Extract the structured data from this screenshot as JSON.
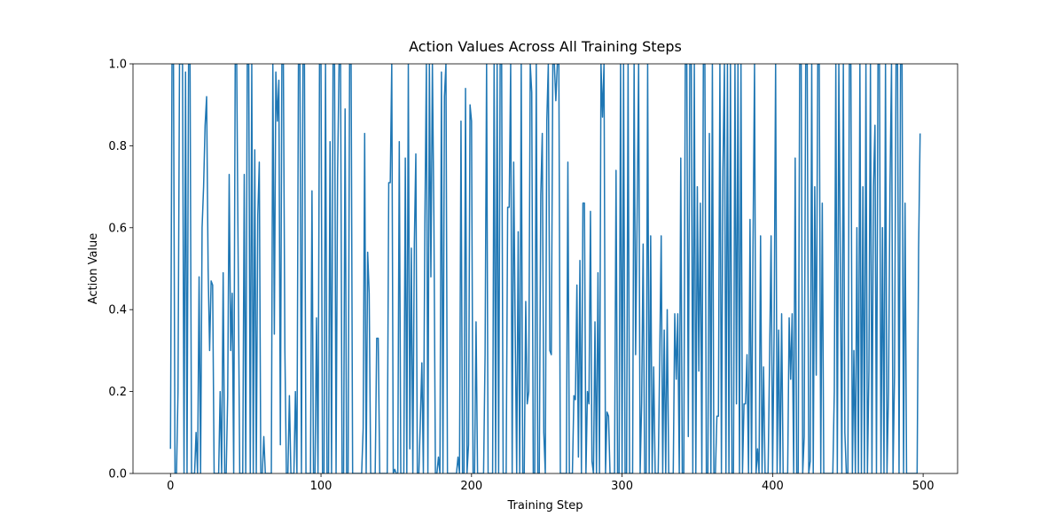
{
  "chart_data": {
    "type": "line",
    "title": "Action Values Across All Training Steps",
    "xlabel": "Training Step",
    "ylabel": "Action Value",
    "color": "#1f77b4",
    "xlim": [
      -24.9,
      522.9
    ],
    "ylim": [
      0,
      1
    ],
    "xticks": [
      0,
      100,
      200,
      300,
      400,
      500
    ],
    "yticks": [
      {
        "value": 0,
        "label": "0.0"
      },
      0.2,
      0.4,
      0.6,
      0.8,
      {
        "value": 1,
        "label": "1.0"
      }
    ],
    "x": [
      0,
      1,
      2,
      3,
      4,
      5,
      6,
      7,
      8,
      9,
      10,
      11,
      12,
      13,
      14,
      15,
      16,
      17,
      18,
      19,
      20,
      21,
      22,
      23,
      24,
      25,
      26,
      27,
      28,
      29,
      30,
      31,
      32,
      33,
      34,
      35,
      36,
      37,
      38,
      39,
      40,
      41,
      42,
      43,
      44,
      45,
      46,
      47,
      48,
      49,
      50,
      51,
      52,
      53,
      54,
      55,
      56,
      57,
      58,
      59,
      60,
      61,
      62,
      63,
      64,
      65,
      66,
      67,
      68,
      69,
      70,
      71,
      72,
      73,
      74,
      75,
      76,
      77,
      78,
      79,
      80,
      81,
      82,
      83,
      84,
      85,
      86,
      87,
      88,
      89,
      90,
      91,
      92,
      93,
      94,
      95,
      96,
      97,
      98,
      99,
      100,
      101,
      102,
      103,
      104,
      105,
      106,
      107,
      108,
      109,
      110,
      111,
      112,
      113,
      114,
      115,
      116,
      117,
      118,
      119,
      120,
      121,
      122,
      123,
      124,
      125,
      126,
      127,
      128,
      129,
      130,
      131,
      132,
      133,
      134,
      135,
      136,
      137,
      138,
      139,
      140,
      141,
      142,
      143,
      144,
      145,
      146,
      147,
      148,
      149,
      150,
      151,
      152,
      153,
      154,
      155,
      156,
      157,
      158,
      159,
      160,
      161,
      162,
      163,
      164,
      165,
      166,
      167,
      168,
      169,
      170,
      171,
      172,
      173,
      174,
      175,
      176,
      177,
      178,
      179,
      180,
      181,
      182,
      183,
      184,
      185,
      186,
      187,
      188,
      189,
      190,
      191,
      192,
      193,
      194,
      195,
      196,
      197,
      198,
      199,
      200,
      201,
      202,
      203,
      204,
      205,
      206,
      207,
      208,
      209,
      210,
      211,
      212,
      213,
      214,
      215,
      216,
      217,
      218,
      219,
      220,
      221,
      222,
      223,
      224,
      225,
      226,
      227,
      228,
      229,
      230,
      231,
      232,
      233,
      234,
      235,
      236,
      237,
      238,
      239,
      240,
      241,
      242,
      243,
      244,
      245,
      246,
      247,
      248,
      249,
      250,
      251,
      252,
      253,
      254,
      255,
      256,
      257,
      258,
      259,
      260,
      261,
      262,
      263,
      264,
      265,
      266,
      267,
      268,
      269,
      270,
      271,
      272,
      273,
      274,
      275,
      276,
      277,
      278,
      279,
      280,
      281,
      282,
      283,
      284,
      285,
      286,
      287,
      288,
      289,
      290,
      291,
      292,
      293,
      294,
      295,
      296,
      297,
      298,
      299,
      300,
      301,
      302,
      303,
      304,
      305,
      306,
      307,
      308,
      309,
      310,
      311,
      312,
      313,
      314,
      315,
      316,
      317,
      318,
      319,
      320,
      321,
      322,
      323,
      324,
      325,
      326,
      327,
      328,
      329,
      330,
      331,
      332,
      333,
      334,
      335,
      336,
      337,
      338,
      339,
      340,
      341,
      342,
      343,
      344,
      345,
      346,
      347,
      348,
      349,
      350,
      351,
      352,
      353,
      354,
      355,
      356,
      357,
      358,
      359,
      360,
      361,
      362,
      363,
      364,
      365,
      366,
      367,
      368,
      369,
      370,
      371,
      372,
      373,
      374,
      375,
      376,
      377,
      378,
      379,
      380,
      381,
      382,
      383,
      384,
      385,
      386,
      387,
      388,
      389,
      390,
      391,
      392,
      393,
      394,
      395,
      396,
      397,
      398,
      399,
      400,
      401,
      402,
      403,
      404,
      405,
      406,
      407,
      408,
      409,
      410,
      411,
      412,
      413,
      414,
      415,
      416,
      417,
      418,
      419,
      420,
      421,
      422,
      423,
      424,
      425,
      426,
      427,
      428,
      429,
      430,
      431,
      432,
      433,
      434,
      435,
      436,
      437,
      438,
      439,
      440,
      441,
      442,
      443,
      444,
      445,
      446,
      447,
      448,
      449,
      450,
      451,
      452,
      453,
      454,
      455,
      456,
      457,
      458,
      459,
      460,
      461,
      462,
      463,
      464,
      465,
      466,
      467,
      468,
      469,
      470,
      471,
      472,
      473,
      474,
      475,
      476,
      477,
      478,
      479,
      480,
      481,
      482,
      483,
      484,
      485,
      486,
      487,
      488,
      489,
      490,
      491,
      492,
      493,
      494,
      495,
      496,
      497,
      498
    ],
    "values": [
      0.06,
      1,
      1,
      0,
      0,
      0.2,
      1,
      1,
      1,
      0,
      0.98,
      0,
      1,
      1,
      0,
      0,
      0,
      0.1,
      0,
      0.48,
      0,
      0.6,
      0.7,
      0.85,
      0.92,
      0.5,
      0.3,
      0.47,
      0.46,
      0,
      0,
      0,
      0,
      0.2,
      0,
      0.49,
      0,
      0,
      0.19,
      0.73,
      0.3,
      0.44,
      0,
      1,
      1,
      0.5,
      0,
      0,
      0,
      0.73,
      0,
      1,
      1,
      0,
      1,
      0,
      0.79,
      0,
      0.63,
      0.76,
      0,
      0,
      0.09,
      0,
      0,
      0,
      0,
      0,
      1,
      0.34,
      0.98,
      0.86,
      0.96,
      0.07,
      1,
      1,
      0.3,
      0,
      0,
      0.19,
      0,
      0,
      0,
      0.2,
      0,
      1,
      1,
      0,
      1,
      1,
      0,
      0,
      0,
      0,
      0.69,
      0,
      0,
      0.38,
      0,
      1,
      1,
      0,
      0,
      1,
      0,
      0,
      0.81,
      0,
      1,
      1,
      0,
      0.73,
      1,
      1,
      0,
      0,
      0.89,
      0,
      0,
      1,
      1,
      0,
      0,
      0,
      0,
      0,
      0,
      0,
      0.11,
      0.83,
      0,
      0.54,
      0.44,
      0,
      0,
      0,
      0,
      0.33,
      0.33,
      0,
      0,
      0,
      0,
      0,
      0,
      0.71,
      0.71,
      1,
      0,
      0.01,
      0,
      0,
      0.81,
      0,
      0,
      0,
      0.77,
      0,
      1,
      0.06,
      0.55,
      0,
      0.56,
      0.78,
      0,
      0,
      0.13,
      0.27,
      0,
      0.61,
      1,
      0,
      1,
      0.48,
      1,
      0.62,
      0,
      0,
      0.04,
      0,
      0.98,
      0,
      0.92,
      1,
      0,
      0,
      0,
      0,
      0,
      0,
      0,
      0.04,
      0,
      0.86,
      0,
      0,
      0.94,
      0,
      0.07,
      0.9,
      0.86,
      0,
      0,
      0.37,
      0,
      0,
      0,
      0,
      0,
      0.29,
      1,
      0,
      0,
      0,
      0,
      1,
      0,
      1,
      0,
      1,
      1,
      0,
      0,
      0,
      0.65,
      0.65,
      1,
      0,
      0.76,
      0.35,
      0,
      0.59,
      0,
      1,
      0,
      0,
      0.42,
      0.17,
      0.2,
      1,
      0.93,
      0,
      0,
      1,
      0,
      0,
      0.68,
      0.83,
      0.1,
      0,
      0.86,
      1,
      0.3,
      0.29,
      1,
      1,
      0.91,
      1,
      1,
      0,
      0,
      0,
      0,
      0,
      0.76,
      0,
      0,
      0,
      0.19,
      0.18,
      0.46,
      0.04,
      0.52,
      0,
      0.66,
      0.66,
      0,
      0.2,
      0.17,
      0.64,
      0.03,
      0,
      0.37,
      0,
      0.49,
      0,
      1,
      0.87,
      1,
      0,
      0.15,
      0.14,
      0,
      0,
      0,
      0,
      0.74,
      0,
      0,
      1,
      0,
      1,
      0,
      0,
      1,
      0,
      0,
      0,
      1,
      0.29,
      0.63,
      1,
      0,
      0.17,
      0.56,
      0,
      0,
      1,
      0,
      0.58,
      0,
      0.26,
      0,
      0,
      0,
      0.28,
      0.58,
      0,
      0.35,
      0,
      0.4,
      0,
      0,
      0,
      0,
      0.39,
      0.23,
      0.39,
      0,
      0.77,
      0,
      0,
      1,
      1,
      0.09,
      1,
      1,
      0,
      1,
      0,
      0.7,
      0.25,
      0.66,
      0,
      1,
      1,
      0,
      0,
      0.83,
      0,
      1,
      0,
      0,
      0.14,
      0.14,
      1,
      0,
      0.74,
      1,
      0,
      1,
      0,
      1,
      0,
      0,
      1,
      0.17,
      1,
      0,
      1,
      0,
      0.17,
      0.17,
      0.29,
      0,
      0.62,
      0,
      0.56,
      1,
      0,
      0.06,
      0,
      0.58,
      0,
      0.26,
      0,
      0,
      0,
      0.28,
      0.58,
      0,
      0.34,
      1,
      0,
      0.35,
      0,
      0.39,
      0,
      0,
      0,
      0,
      0.38,
      0.23,
      0.39,
      0,
      0.77,
      0,
      0,
      1,
      1,
      0,
      0.09,
      1,
      1,
      0,
      0.03,
      1,
      0,
      0.7,
      0.24,
      1,
      1,
      0,
      0.66,
      0,
      0,
      0,
      0,
      0,
      0,
      0,
      0.2,
      1,
      0,
      1,
      0.5,
      0,
      1,
      0.1,
      0,
      0,
      1,
      1,
      0,
      0.3,
      0,
      0.6,
      0,
      1,
      0,
      0.7,
      0,
      1,
      0,
      0.25,
      1,
      0,
      0.7,
      0.85,
      0,
      1,
      1,
      0,
      0.6,
      0,
      1,
      0,
      0.2,
      0.7,
      1,
      0,
      0.24,
      1,
      1,
      0,
      1,
      1,
      0,
      0.66,
      0,
      0,
      0,
      0,
      0,
      0,
      0,
      0,
      0.55,
      0.83
    ]
  }
}
